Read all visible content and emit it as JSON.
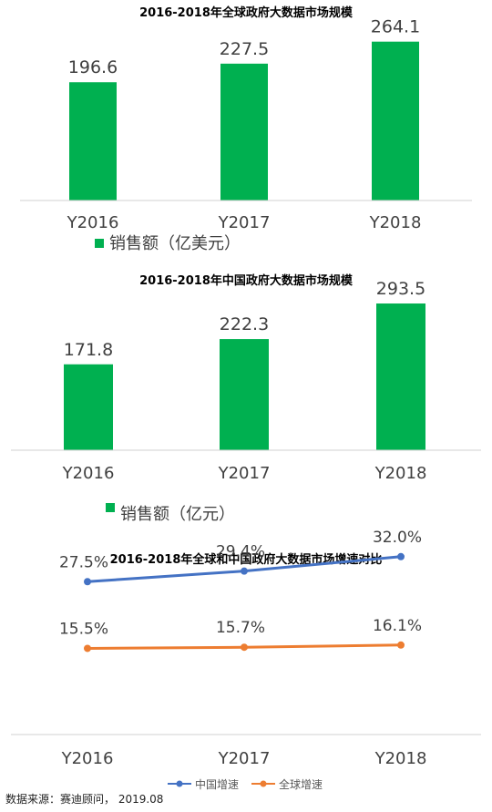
{
  "chart_data": [
    {
      "type": "bar",
      "title": "2016-2018年全球政府大数据市场规模",
      "categories": [
        "Y2016",
        "Y2017",
        "Y2018"
      ],
      "series": [
        {
          "name": "销售额（亿美元）",
          "values": [
            196.6,
            227.5,
            264.1
          ]
        }
      ],
      "data_labels": [
        "196.6",
        "227.5",
        "264.1"
      ],
      "ylim": [
        0,
        300
      ],
      "grid": false,
      "legend": "bottom-left",
      "color": "#00b050"
    },
    {
      "type": "bar",
      "title": "2016-2018年中国政府大数据市场规模",
      "categories": [
        "Y2016",
        "Y2017",
        "Y2018"
      ],
      "series": [
        {
          "name": "销售额（亿元）",
          "values": [
            171.8,
            222.3,
            293.5
          ]
        }
      ],
      "data_labels": [
        "171.8",
        "222.3",
        "293.5"
      ],
      "ylim": [
        0,
        330
      ],
      "grid": false,
      "legend": "bottom-left",
      "color": "#00b050"
    },
    {
      "type": "line",
      "title": "2016-2018年全球和中国政府大数据市场增速对比",
      "categories": [
        "Y2016",
        "Y2017",
        "Y2018"
      ],
      "series": [
        {
          "name": "中国增速",
          "values": [
            27.5,
            29.4,
            32.0
          ],
          "labels": [
            "27.5%",
            "29.4%",
            "32.0%"
          ],
          "color": "#4472c4"
        },
        {
          "name": "全球增速",
          "values": [
            15.5,
            15.7,
            16.1
          ],
          "labels": [
            "15.5%",
            "15.7%",
            "16.1%"
          ],
          "color": "#ed7d31"
        }
      ],
      "ylim": [
        0,
        40
      ],
      "grid": false,
      "legend": "bottom-center"
    }
  ],
  "source": "数据来源：赛迪顾问，  2019.08"
}
